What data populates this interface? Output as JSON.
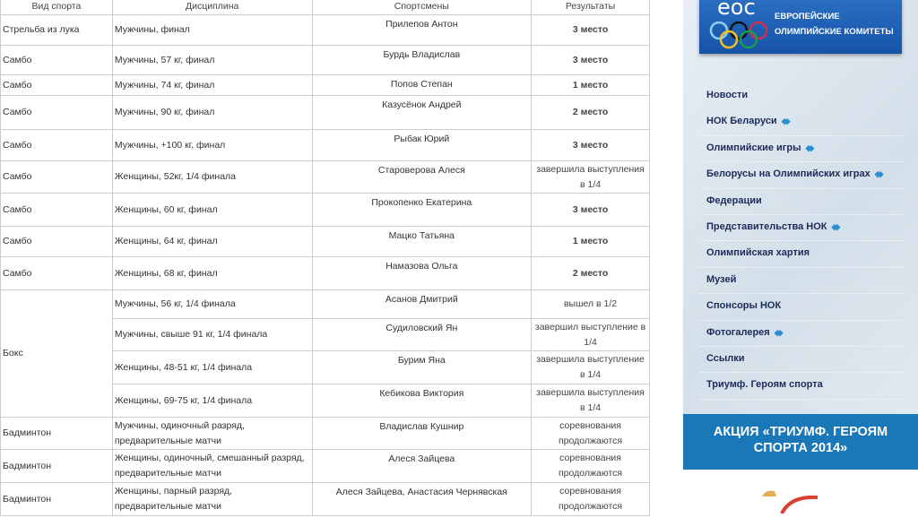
{
  "table": {
    "headers": [
      "Вид спорта",
      "Дисциплина",
      "Спортсмены",
      "Результаты"
    ],
    "rows": [
      [
        "Стрельба из лука",
        "Мужчины, финал",
        "Прилепов Антон",
        "3 место"
      ],
      [
        "Самбо",
        "Мужчины, 57 кг, финал",
        "Бурдь Владислав",
        "3 место"
      ],
      [
        "Самбо",
        "Мужчины, 74 кг, финал",
        "Попов Степан",
        "1 место"
      ],
      [
        "Самбо",
        "Мужчины, 90 кг, финал",
        "Казусёнок Андрей",
        "2 место"
      ],
      [
        "Самбо",
        "Мужчины, +100 кг, финал",
        "Рыбак Юрий",
        "3 место"
      ],
      [
        "Самбо",
        "Женщины, 52кг, 1/4 финала",
        "Староверова Алеся",
        "завершила выступления в 1/4"
      ],
      [
        "Самбо",
        "Женщины, 60 кг, финал",
        "Прокопенко Екатерина",
        "3 место"
      ],
      [
        "Самбо",
        "Женщины, 64 кг, финал",
        "Мацко Татьяна",
        "1 место"
      ],
      [
        "Самбо",
        "Женщины, 68 кг, финал",
        "Намазова Ольга",
        "2 место"
      ],
      [
        "Бокс",
        "Мужчины, 56 кг, 1/4 финала",
        "Асанов Дмитрий",
        "вышел в 1/2"
      ],
      [
        "",
        "Мужчины, свыше 91 кг, 1/4 финала",
        "Судиловский Ян",
        "завершил выступление в 1/4"
      ],
      [
        "",
        "Женщины, 48-51 кг, 1/4 финала",
        "Бурим Яна",
        "завершила выступление в 1/4"
      ],
      [
        "",
        "Женщины, 69-75 кг, 1/4 финала",
        "Кебикова Виктория",
        "завершила выступления в 1/4"
      ],
      [
        "Бадминтон",
        "Мужчины, одиночный разряд, предварительные матчи",
        "Владислав Кушнир",
        "соревнования продолжаются"
      ],
      [
        "Бадминтон",
        "Женщины, одиночный, смешанный разряд, предварительные матчи",
        "Алеся Зайцева",
        "соревнования продолжаются"
      ],
      [
        "Бадминтон",
        "Женщины, парный разряд, предварительные матчи",
        "Алеся Зайцева, Анастасия Чернявская",
        "соревнования продолжаются"
      ]
    ]
  },
  "sidebar": {
    "logo": {
      "abbr": "eoc",
      "line1": "ЕВРОПЕЙСКИЕ",
      "line2": "ОЛИМПИЙСКИЕ КОМИТЕТЫ"
    },
    "menu": [
      {
        "label": "Новости",
        "sub": false
      },
      {
        "label": "НОК Беларуси",
        "sub": true
      },
      {
        "label": "Олимпийские игры",
        "sub": true
      },
      {
        "label": "Белорусы на Олимпийских играх",
        "sub": true
      },
      {
        "label": "Федерации",
        "sub": false
      },
      {
        "label": "Представительства НОК",
        "sub": true
      },
      {
        "label": "Олимпийская хартия",
        "sub": false
      },
      {
        "label": "Музей",
        "sub": false
      },
      {
        "label": "Спонсоры НОК",
        "sub": false
      },
      {
        "label": "Фотогалерея",
        "sub": true
      },
      {
        "label": "Ссылки",
        "sub": false
      },
      {
        "label": "Триумф. Героям спорта",
        "sub": false
      }
    ],
    "promo": {
      "line1": "АКЦИЯ «ТРИУМФ. ГЕРОЯМ",
      "line2": "СПОРТА 2014»"
    },
    "accent": "#1a78b8"
  }
}
